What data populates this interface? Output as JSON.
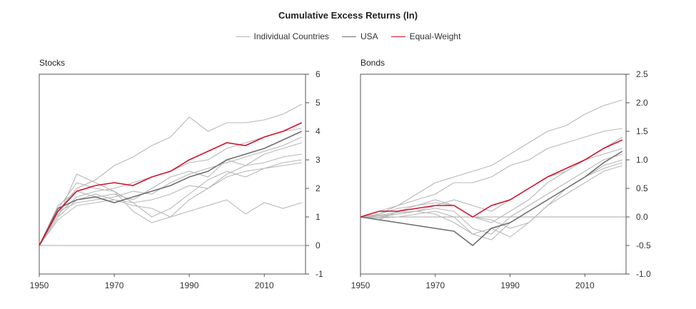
{
  "chart_data": {
    "type": "line",
    "title": "Cumulative Excess Returns (ln)",
    "legend_position": "top-center",
    "legend": [
      {
        "label": "Individual Countries",
        "color": "#b8b8b8"
      },
      {
        "label": "USA",
        "color": "#6e6e6e"
      },
      {
        "label": "Equal-Weight",
        "color": "#d0112b"
      }
    ],
    "panels": [
      {
        "name": "Stocks",
        "xlim": [
          1950,
          2021
        ],
        "ylim": [
          -1,
          6
        ],
        "x_ticks": [
          1950,
          1970,
          1990,
          2010
        ],
        "y_ticks": [
          "-1",
          "0",
          "1",
          "2",
          "3",
          "4",
          "5",
          "6"
        ],
        "y_tick_values": [
          -1,
          0,
          1,
          2,
          3,
          4,
          5,
          6
        ],
        "zero_line": true,
        "countries": [
          {
            "x": [
              1950,
              1955,
              1960,
              1965,
              1970,
              1975,
              1980,
              1985,
              1990,
              1995,
              2000,
              2005,
              2010,
              2015,
              2020
            ],
            "y": [
              0,
              1.2,
              2.0,
              2.3,
              2.8,
              3.1,
              3.5,
              3.8,
              4.5,
              4.0,
              4.3,
              4.3,
              4.4,
              4.6,
              4.95
            ]
          },
          {
            "x": [
              1950,
              1955,
              1960,
              1965,
              1970,
              1975,
              1980,
              1985,
              1990,
              1995,
              2000,
              2005,
              2010,
              2015,
              2020
            ],
            "y": [
              0,
              1.0,
              1.6,
              1.8,
              1.6,
              1.4,
              1.3,
              1.0,
              1.2,
              1.4,
              1.6,
              1.1,
              1.5,
              1.3,
              1.5
            ]
          },
          {
            "x": [
              1950,
              1955,
              1960,
              1965,
              1970,
              1975,
              1980,
              1985,
              1990,
              1995,
              2000,
              2005,
              2010,
              2015,
              2020
            ],
            "y": [
              0,
              1.3,
              2.2,
              2.0,
              1.9,
              1.2,
              0.8,
              1.0,
              1.6,
              2.0,
              2.5,
              2.8,
              2.9,
              3.1,
              3.2
            ]
          },
          {
            "x": [
              1950,
              1955,
              1960,
              1965,
              1970,
              1975,
              1980,
              1985,
              1990,
              1995,
              2000,
              2005,
              2010,
              2015,
              2020
            ],
            "y": [
              0,
              1.1,
              1.7,
              1.9,
              2.0,
              2.2,
              2.4,
              2.6,
              2.9,
              3.0,
              3.4,
              3.6,
              3.8,
              4.0,
              4.1
            ]
          },
          {
            "x": [
              1950,
              1955,
              1960,
              1965,
              1970,
              1975,
              1980,
              1985,
              1990,
              1995,
              2000,
              2005,
              2010,
              2015,
              2020
            ],
            "y": [
              0,
              1.4,
              1.9,
              1.7,
              1.8,
              1.6,
              2.0,
              2.4,
              2.6,
              2.4,
              3.0,
              2.8,
              3.2,
              3.4,
              3.6
            ]
          },
          {
            "x": [
              1950,
              1955,
              1960,
              1965,
              1970,
              1975,
              1980,
              1985,
              1990,
              1995,
              2000,
              2005,
              2010,
              2015,
              2020
            ],
            "y": [
              0,
              1.2,
              1.5,
              1.6,
              1.7,
              1.9,
              1.8,
              2.2,
              2.5,
              2.7,
              2.9,
              3.1,
              3.3,
              3.5,
              3.8
            ]
          },
          {
            "x": [
              1950,
              1955,
              1960,
              1965,
              1970,
              1975,
              1980,
              1985,
              1990,
              1995,
              2000,
              2005,
              2010,
              2015,
              2020
            ],
            "y": [
              0,
              0.9,
              1.4,
              1.5,
              1.6,
              1.5,
              1.6,
              1.8,
              2.1,
              2.0,
              2.4,
              2.6,
              2.7,
              2.9,
              3.0
            ]
          },
          {
            "x": [
              1950,
              1955,
              1960,
              1965,
              1970,
              1975,
              1980,
              1985,
              1990,
              1995,
              2000,
              2005,
              2010,
              2015,
              2020
            ],
            "y": [
              0,
              1.0,
              2.5,
              2.2,
              1.9,
              1.5,
              1.0,
              1.3,
              1.8,
              2.3,
              2.6,
              2.4,
              2.7,
              2.8,
              2.9
            ]
          }
        ],
        "usa": {
          "x": [
            1950,
            1955,
            1960,
            1965,
            1970,
            1975,
            1980,
            1985,
            1990,
            1995,
            2000,
            2005,
            2010,
            2015,
            2020
          ],
          "y": [
            0,
            1.3,
            1.6,
            1.7,
            1.5,
            1.7,
            1.9,
            2.1,
            2.4,
            2.6,
            3.0,
            3.2,
            3.4,
            3.7,
            4.0
          ]
        },
        "equal_weight": {
          "x": [
            1950,
            1955,
            1960,
            1965,
            1970,
            1975,
            1980,
            1985,
            1990,
            1995,
            2000,
            2005,
            2010,
            2015,
            2020
          ],
          "y": [
            0,
            1.2,
            1.9,
            2.1,
            2.2,
            2.1,
            2.4,
            2.6,
            3.0,
            3.3,
            3.6,
            3.5,
            3.8,
            4.0,
            4.3
          ]
        }
      },
      {
        "name": "Bonds",
        "xlim": [
          1950,
          2021
        ],
        "ylim": [
          -1.0,
          2.5
        ],
        "x_ticks": [
          1950,
          1970,
          1990,
          2010
        ],
        "y_ticks": [
          "-1.0",
          "-0.5",
          "0.0",
          "0.5",
          "1.0",
          "1.5",
          "2.0",
          "2.5"
        ],
        "y_tick_values": [
          -1.0,
          -0.5,
          0.0,
          0.5,
          1.0,
          1.5,
          2.0,
          2.5
        ],
        "zero_line": true,
        "countries": [
          {
            "x": [
              1950,
              1955,
              1960,
              1965,
              1970,
              1975,
              1980,
              1985,
              1990,
              1995,
              2000,
              2005,
              2010,
              2015,
              2020
            ],
            "y": [
              0,
              0.1,
              0.2,
              0.4,
              0.6,
              0.7,
              0.8,
              0.9,
              1.1,
              1.3,
              1.5,
              1.6,
              1.8,
              1.95,
              2.05
            ]
          },
          {
            "x": [
              1950,
              1955,
              1960,
              1965,
              1970,
              1975,
              1980,
              1985,
              1990,
              1995,
              2000,
              2005,
              2010,
              2015,
              2020
            ],
            "y": [
              0,
              0.05,
              0.2,
              0.3,
              0.4,
              0.6,
              0.6,
              0.7,
              0.9,
              1.0,
              1.2,
              1.3,
              1.4,
              1.5,
              1.55
            ]
          },
          {
            "x": [
              1950,
              1955,
              1960,
              1965,
              1970,
              1975,
              1980,
              1985,
              1990,
              1995,
              2000,
              2005,
              2010,
              2015,
              2020
            ],
            "y": [
              0,
              -0.05,
              0.1,
              0.2,
              0.3,
              0.2,
              0.0,
              -0.1,
              0.1,
              0.3,
              0.6,
              0.8,
              1.0,
              1.2,
              1.4
            ]
          },
          {
            "x": [
              1950,
              1955,
              1960,
              1965,
              1970,
              1975,
              1980,
              1985,
              1990,
              1995,
              2000,
              2005,
              2010,
              2015,
              2020
            ],
            "y": [
              0,
              0.02,
              0.05,
              0.1,
              0.15,
              0.1,
              -0.2,
              -0.3,
              0.0,
              0.2,
              0.4,
              0.6,
              0.8,
              1.0,
              1.1
            ]
          },
          {
            "x": [
              1950,
              1955,
              1960,
              1965,
              1970,
              1975,
              1980,
              1985,
              1990,
              1995,
              2000,
              2005,
              2010,
              2015,
              2020
            ],
            "y": [
              0,
              -0.02,
              0.0,
              0.05,
              0.1,
              0.0,
              -0.3,
              -0.4,
              -0.1,
              0.1,
              0.3,
              0.5,
              0.7,
              0.9,
              1.0
            ]
          },
          {
            "x": [
              1950,
              1955,
              1960,
              1965,
              1970,
              1975,
              1980,
              1985,
              1990,
              1995,
              2000,
              2005,
              2010,
              2015,
              2020
            ],
            "y": [
              0,
              0.05,
              0.15,
              0.2,
              0.25,
              0.2,
              0.0,
              -0.05,
              -0.2,
              -0.1,
              0.2,
              0.5,
              0.7,
              0.85,
              0.95
            ]
          },
          {
            "x": [
              1950,
              1955,
              1960,
              1965,
              1970,
              1975,
              1980,
              1985,
              1990,
              1995,
              2000,
              2005,
              2010,
              2015,
              2020
            ],
            "y": [
              0,
              0.0,
              0.05,
              0.1,
              0.2,
              0.3,
              0.2,
              0.1,
              0.3,
              0.5,
              0.7,
              0.8,
              1.0,
              1.1,
              1.2
            ]
          },
          {
            "x": [
              1950,
              1955,
              1960,
              1965,
              1970,
              1975,
              1980,
              1985,
              1990,
              1995,
              2000,
              2005,
              2010,
              2015,
              2020
            ],
            "y": [
              0,
              0.03,
              0.08,
              0.1,
              0.05,
              -0.1,
              -0.3,
              -0.2,
              -0.35,
              -0.1,
              0.2,
              0.4,
              0.6,
              0.8,
              0.9
            ]
          }
        ],
        "usa": {
          "x": [
            1950,
            1955,
            1960,
            1965,
            1970,
            1975,
            1980,
            1985,
            1990,
            1995,
            2000,
            2005,
            2010,
            2015,
            2020
          ],
          "y": [
            0,
            -0.05,
            -0.1,
            -0.15,
            -0.2,
            -0.25,
            -0.5,
            -0.2,
            -0.1,
            0.1,
            0.3,
            0.5,
            0.7,
            0.95,
            1.15
          ]
        },
        "equal_weight": {
          "x": [
            1950,
            1955,
            1960,
            1965,
            1970,
            1975,
            1980,
            1985,
            1990,
            1995,
            2000,
            2005,
            2010,
            2015,
            2020
          ],
          "y": [
            0,
            0.1,
            0.1,
            0.15,
            0.2,
            0.2,
            0.0,
            0.2,
            0.3,
            0.5,
            0.7,
            0.85,
            1.0,
            1.2,
            1.35
          ]
        }
      }
    ]
  }
}
